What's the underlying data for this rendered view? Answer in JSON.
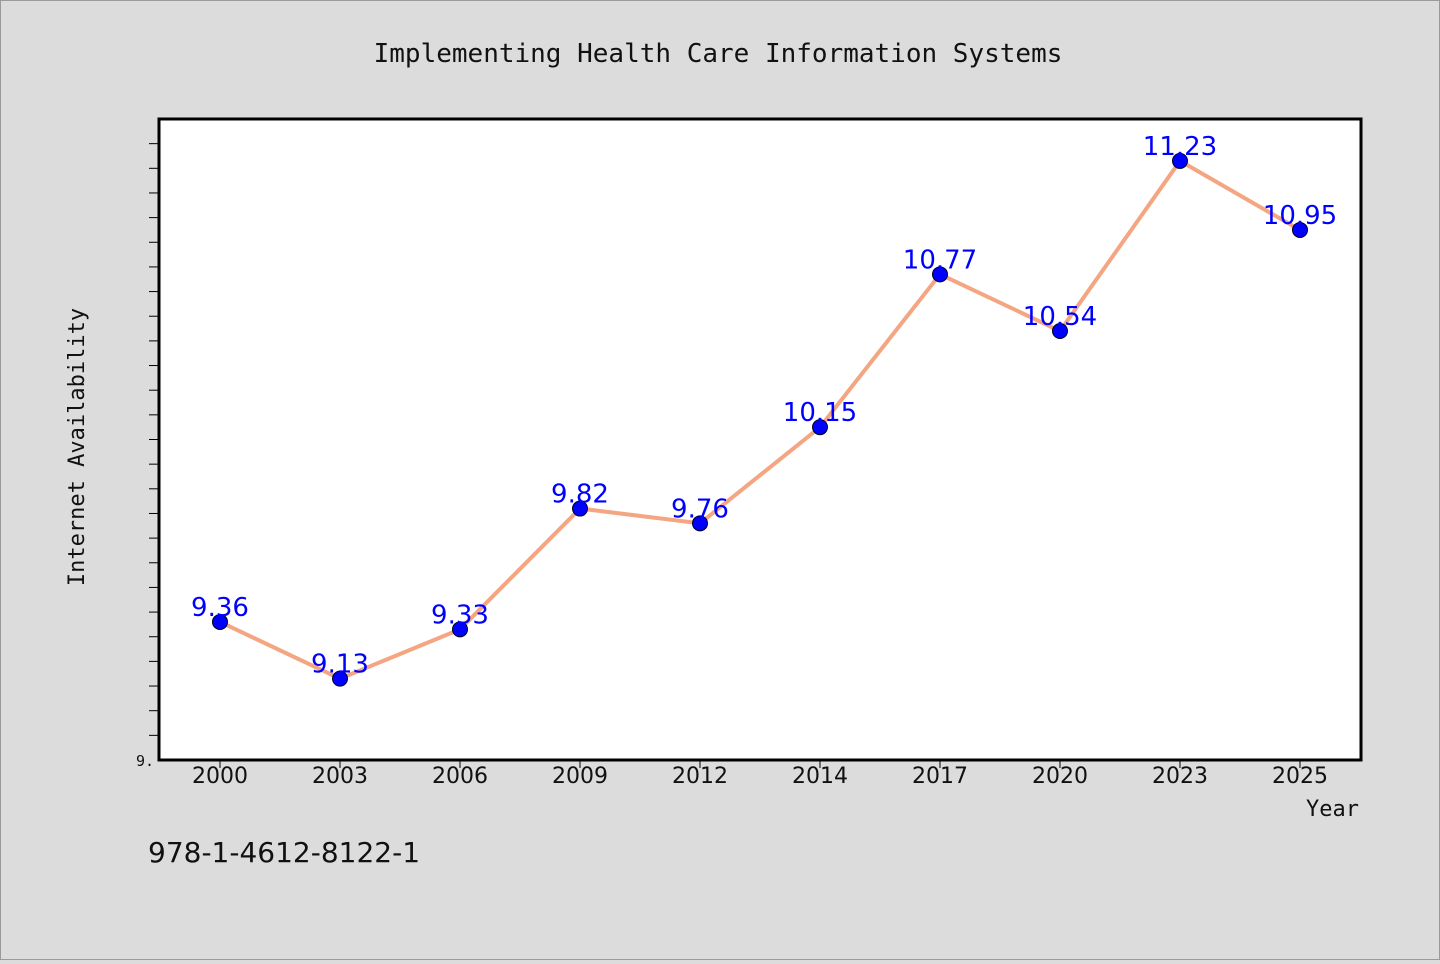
{
  "isbn": "978-1-4612-8122-1",
  "chart_data": {
    "type": "line",
    "title": "Implementing Health Care Information Systems",
    "xlabel": "Year",
    "ylabel": "Internet Availability",
    "categories": [
      "2000",
      "2003",
      "2006",
      "2009",
      "2012",
      "2014",
      "2017",
      "2020",
      "2023",
      "2025"
    ],
    "values": [
      9.36,
      9.13,
      9.33,
      9.82,
      9.76,
      10.15,
      10.77,
      10.54,
      11.23,
      10.95
    ],
    "data_labels": [
      "9.36",
      "9.13",
      "9.33",
      "9.82",
      "9.76",
      "10.15",
      "10.77",
      "10.54",
      "11.23",
      "10.95"
    ],
    "ylim": [
      8.8,
      11.4
    ],
    "y_tick_labels": [
      "9."
    ],
    "grid": false,
    "legend": "none",
    "colors": {
      "line": "#f4a582",
      "marker": "#0000ff",
      "label": "#0000ff",
      "plot_bg": "#ffffff",
      "page_bg": "#dcdcdc"
    }
  }
}
